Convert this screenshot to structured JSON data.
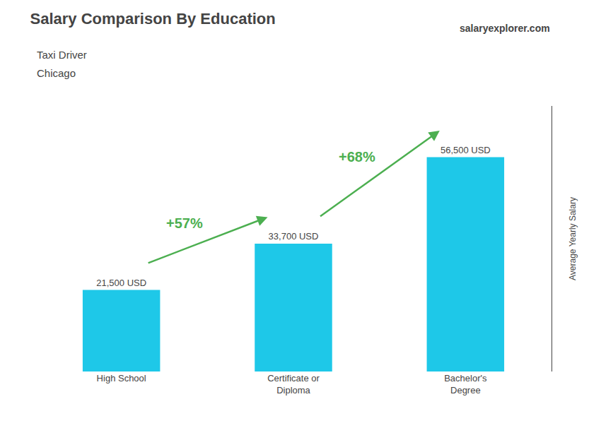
{
  "chart_data": {
    "type": "bar",
    "title": "Salary Comparison By Education",
    "subtitle": [
      "Taxi Driver",
      "Chicago"
    ],
    "watermark": "salaryexplorer.com",
    "ylabel": "Average Yearly Salary",
    "categories": [
      "High School",
      "Certificate or\nDiploma",
      "Bachelor's\nDegree"
    ],
    "values": [
      21500,
      33700,
      56500
    ],
    "value_labels": [
      "21,500 USD",
      "33,700 USD",
      "56,500 USD"
    ],
    "data_labels": true,
    "color": "#1EC8E8",
    "ylim": [
      0,
      70000
    ],
    "grid": false,
    "tick_labels": "x",
    "annotations": [
      {
        "text": "+57%",
        "from": "High School",
        "to": "Certificate or\nDiploma",
        "color": "#4caf50"
      },
      {
        "text": "+68%",
        "from": "Certificate or\nDiploma",
        "to": "Bachelor's\nDegree",
        "color": "#4caf50"
      }
    ]
  }
}
